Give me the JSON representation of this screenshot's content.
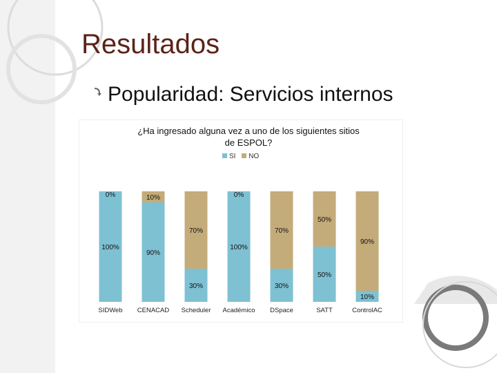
{
  "slide": {
    "title": "Resultados",
    "bullet": "Popularidad: Servicios internos"
  },
  "colors": {
    "si": "#7ec1d3",
    "no": "#c4ab7a",
    "title": "#5c2318"
  },
  "chart_data": {
    "type": "bar",
    "stacked": true,
    "percent": true,
    "title_line1": "¿Ha ingresado alguna vez a uno de los siguientes sitios",
    "title_line2": "de ESPOL?",
    "legend_position": "top",
    "categories": [
      "SIDWeb",
      "CENACAD",
      "Scheduler",
      "Académico",
      "DSpace",
      "SATT",
      "ControlAC"
    ],
    "series": [
      {
        "name": "SI",
        "color": "#7ec1d3",
        "values": [
          100,
          90,
          30,
          100,
          30,
          50,
          10
        ],
        "labels": [
          "100%",
          "90%",
          "30%",
          "100%",
          "30%",
          "50%",
          "10%"
        ]
      },
      {
        "name": "NO",
        "color": "#c4ab7a",
        "values": [
          0,
          10,
          70,
          0,
          70,
          50,
          90
        ],
        "labels": [
          "0%",
          "10%",
          "70%",
          "0%",
          "70%",
          "50%",
          "90%"
        ]
      }
    ],
    "ylim": [
      0,
      100
    ]
  }
}
